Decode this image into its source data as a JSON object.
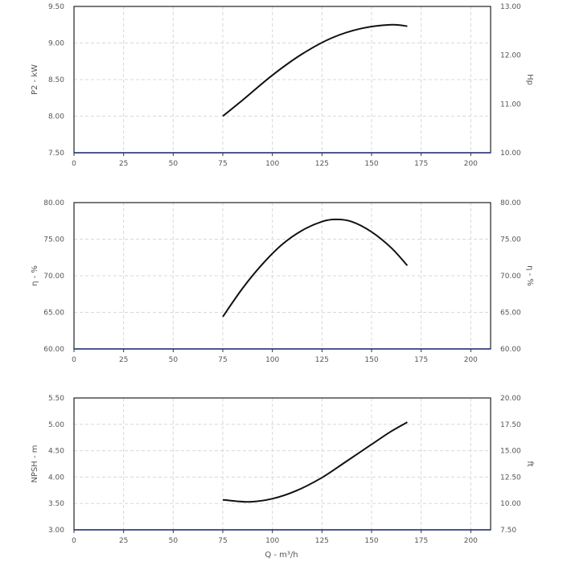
{
  "chart_data": [
    {
      "type": "line",
      "ylabel": "P2 - kW",
      "y2label": "Hp",
      "xlim": [
        0,
        210
      ],
      "ylim": [
        7.5,
        9.5
      ],
      "y2lim": [
        10.0,
        13.0
      ],
      "xticks": [
        "0",
        "25",
        "50",
        "75",
        "100",
        "125",
        "150",
        "175",
        "200"
      ],
      "yticks": [
        "7.50",
        "8.00",
        "8.50",
        "9.00",
        "9.50"
      ],
      "y2ticks": [
        "10.00",
        "11.00",
        "12.00",
        "13.00"
      ],
      "grid": true,
      "series": [
        {
          "x": [
            75,
            85,
            100,
            115,
            130,
            145,
            160,
            168
          ],
          "y": [
            8.0,
            8.22,
            8.56,
            8.85,
            9.07,
            9.2,
            9.25,
            9.23
          ]
        }
      ]
    },
    {
      "type": "line",
      "ylabel": "η - %",
      "y2label": "η - %",
      "xlim": [
        0,
        210
      ],
      "ylim": [
        60.0,
        80.0
      ],
      "y2lim": [
        60.0,
        80.0
      ],
      "xticks": [
        "0",
        "25",
        "50",
        "75",
        "100",
        "125",
        "150",
        "175",
        "200"
      ],
      "yticks": [
        "60.00",
        "65.00",
        "70.00",
        "75.00",
        "80.00"
      ],
      "y2ticks": [
        "60.00",
        "65.00",
        "70.00",
        "75.00",
        "80.00"
      ],
      "grid": true,
      "series": [
        {
          "x": [
            75,
            85,
            95,
            105,
            115,
            125,
            132,
            140,
            150,
            160,
            168
          ],
          "y": [
            64.4,
            68.3,
            71.6,
            74.3,
            76.2,
            77.4,
            77.7,
            77.4,
            76.0,
            73.8,
            71.4
          ]
        }
      ]
    },
    {
      "type": "line",
      "ylabel": "NPSH - m",
      "y2label": "ft",
      "xlabel": "Q - m³/h",
      "xlim": [
        0,
        210
      ],
      "ylim": [
        3.0,
        5.5
      ],
      "y2lim": [
        7.5,
        20.0
      ],
      "xticks": [
        "0",
        "25",
        "50",
        "75",
        "100",
        "125",
        "150",
        "175",
        "200"
      ],
      "yticks": [
        "3.00",
        "3.50",
        "4.00",
        "4.50",
        "5.00",
        "5.50"
      ],
      "y2ticks": [
        "7.50",
        "10.00",
        "12.50",
        "15.00",
        "17.50",
        "20.00"
      ],
      "grid": true,
      "series": [
        {
          "x": [
            75,
            88,
            100,
            112,
            125,
            137,
            150,
            160,
            168
          ],
          "y": [
            3.57,
            3.53,
            3.59,
            3.74,
            3.99,
            4.29,
            4.62,
            4.87,
            5.04
          ]
        }
      ]
    }
  ]
}
